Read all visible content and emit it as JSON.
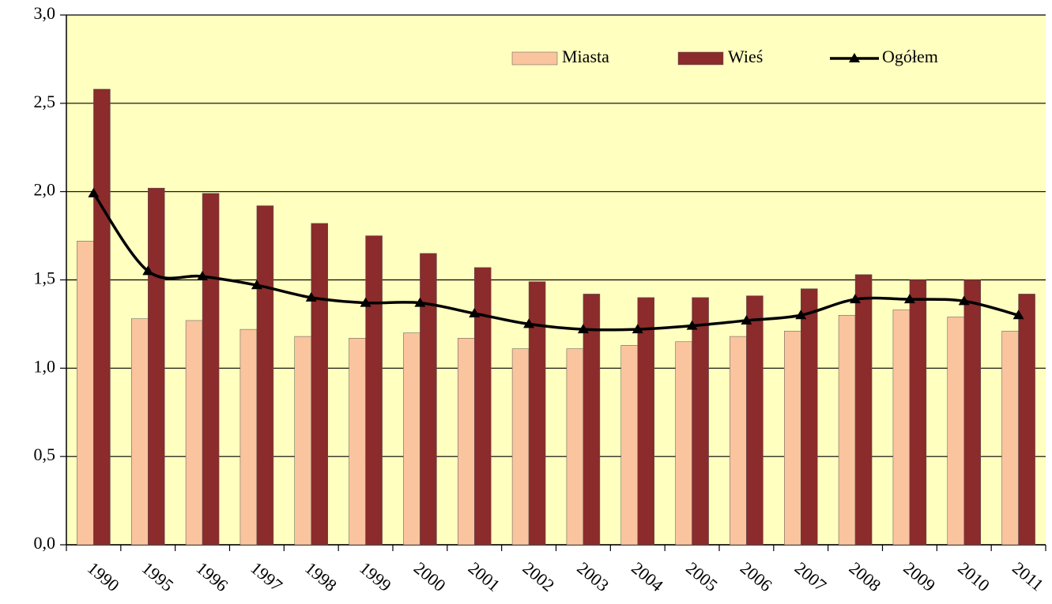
{
  "chart_data": {
    "type": "bar",
    "categories": [
      "1990",
      "1995",
      "1996",
      "1997",
      "1998",
      "1999",
      "2000",
      "2001",
      "2002",
      "2003",
      "2004",
      "2005",
      "2006",
      "2007",
      "2008",
      "2009",
      "2010",
      "2011"
    ],
    "series": [
      {
        "name": "Miasta",
        "color": "#f9c49e",
        "type": "bar",
        "values": [
          1.72,
          1.28,
          1.27,
          1.22,
          1.18,
          1.17,
          1.2,
          1.17,
          1.11,
          1.11,
          1.13,
          1.15,
          1.18,
          1.21,
          1.3,
          1.33,
          1.29,
          1.21
        ]
      },
      {
        "name": "Wieś",
        "color": "#8b2b2b",
        "type": "bar",
        "values": [
          2.58,
          2.02,
          1.99,
          1.92,
          1.82,
          1.75,
          1.65,
          1.57,
          1.49,
          1.42,
          1.4,
          1.4,
          1.41,
          1.45,
          1.53,
          1.5,
          1.5,
          1.42
        ]
      },
      {
        "name": "Ogółem",
        "color": "#000000",
        "type": "line",
        "values": [
          1.99,
          1.55,
          1.52,
          1.47,
          1.4,
          1.37,
          1.37,
          1.31,
          1.25,
          1.22,
          1.22,
          1.24,
          1.27,
          1.3,
          1.39,
          1.39,
          1.38,
          1.3
        ]
      }
    ],
    "ylim": [
      0,
      3
    ],
    "yticks": [
      {
        "value": 0,
        "label": "0,0"
      },
      {
        "value": 0.5,
        "label": "0,5"
      },
      {
        "value": 1,
        "label": "1,0"
      },
      {
        "value": 1.5,
        "label": "1,5"
      },
      {
        "value": 2,
        "label": "2,0"
      },
      {
        "value": 2.5,
        "label": "2,5"
      },
      {
        "value": 3,
        "label": "3,0"
      }
    ],
    "grid": true,
    "background": "#ffffc0",
    "legend": "top-right"
  }
}
